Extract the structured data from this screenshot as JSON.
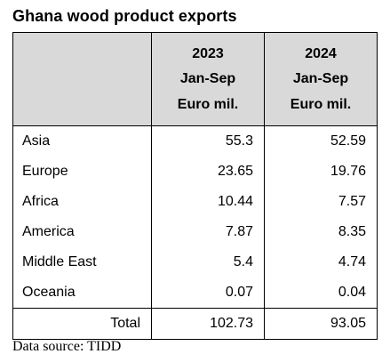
{
  "title": "Ghana wood product exports",
  "header": {
    "col1": {
      "year": "2023",
      "period": "Jan-Sep",
      "unit": "Euro mil."
    },
    "col2": {
      "year": "2024",
      "period": "Jan-Sep",
      "unit": "Euro mil."
    }
  },
  "rows": [
    {
      "region": "Asia",
      "v2023": "55.3",
      "v2024": "52.59"
    },
    {
      "region": "Europe",
      "v2023": "23.65",
      "v2024": "19.76"
    },
    {
      "region": "Africa",
      "v2023": "10.44",
      "v2024": "7.57"
    },
    {
      "region": "America",
      "v2023": "7.87",
      "v2024": "8.35"
    },
    {
      "region": "Middle East",
      "v2023": "5.4",
      "v2024": "4.74"
    },
    {
      "region": "Oceania",
      "v2023": "0.07",
      "v2024": "0.04"
    }
  ],
  "total": {
    "label": "Total",
    "v2023": "102.73",
    "v2024": "93.05"
  },
  "source": "Data source: TIDD",
  "colors": {
    "header_background": "#d9d9d9",
    "border": "#000000",
    "text": "#000000"
  }
}
